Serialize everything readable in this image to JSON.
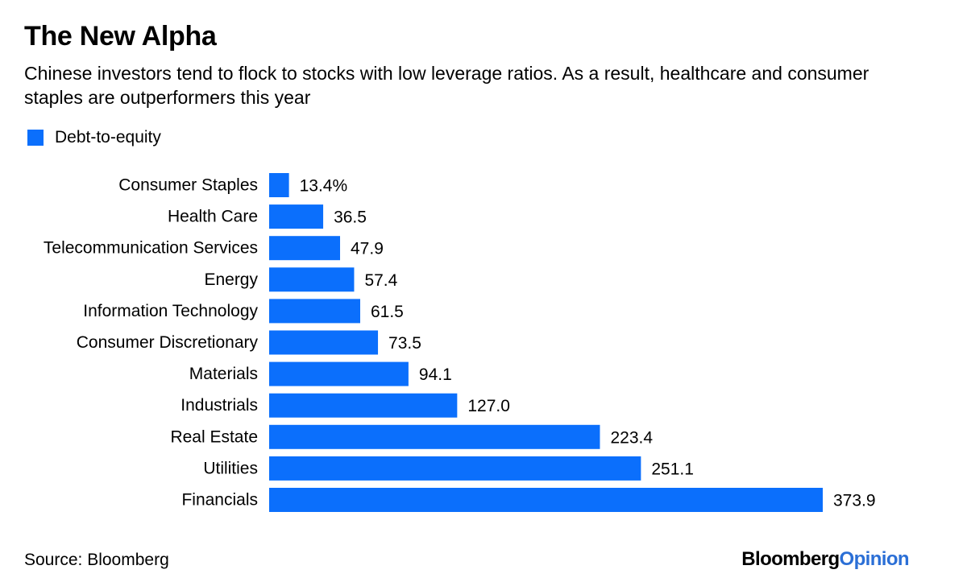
{
  "title": "The New Alpha",
  "subtitle": "Chinese investors tend to flock to stocks with low leverage ratios. As a result, healthcare and consumer staples are outperformers this year",
  "source": "Source: Bloomberg",
  "brand": {
    "part1": "Bloomberg",
    "part2": "Opinion",
    "part2_color": "#2b6fd6"
  },
  "colors": {
    "bar": "#0b6ffc"
  },
  "chart_data": {
    "type": "bar",
    "orientation": "horizontal",
    "categories": [
      "Consumer Staples",
      "Health Care",
      "Telecommunication Services",
      "Energy",
      "Information Technology",
      "Consumer Discretionary",
      "Materials",
      "Industrials",
      "Real Estate",
      "Utilities",
      "Financials"
    ],
    "series": [
      {
        "name": "Debt-to-equity",
        "values": [
          13.4,
          36.5,
          47.9,
          57.4,
          61.5,
          73.5,
          94.1,
          127.0,
          223.4,
          251.1,
          373.9
        ]
      }
    ],
    "value_labels": [
      "13.4%",
      "36.5",
      "47.9",
      "57.4",
      "61.5",
      "73.5",
      "94.1",
      "127.0",
      "223.4",
      "251.1",
      "373.9"
    ],
    "legend_position": "top-left",
    "grid": false,
    "xlim": [
      0,
      373.9
    ]
  }
}
